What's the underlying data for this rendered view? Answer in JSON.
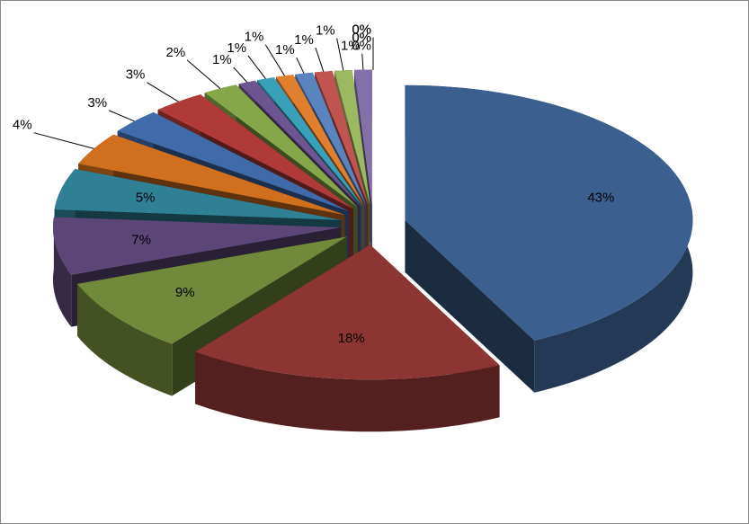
{
  "chart_data": {
    "type": "pie3d",
    "values": [
      43,
      18,
      9,
      7,
      5,
      4,
      3,
      3,
      2,
      1,
      1,
      1,
      1,
      1,
      1,
      1,
      0,
      0,
      0,
      0,
      0
    ],
    "value_labels": [
      "43%",
      "18%",
      "9%",
      "7%",
      "5%",
      "4%",
      "3%",
      "3%",
      "2%",
      "1%",
      "1%",
      "1%",
      "1%",
      "1%",
      "1%",
      "1%",
      "0%",
      "0%",
      "0%",
      "0%",
      "0%"
    ],
    "colors": [
      "#3b5f8f",
      "#8c3533",
      "#71893a",
      "#5b4677",
      "#2f7f95",
      "#d0701e",
      "#3f6bab",
      "#b03a37",
      "#86a64a",
      "#6c5590",
      "#38a0b8",
      "#e07f2e",
      "#5a84c0",
      "#c05450",
      "#9cb860",
      "#8470a8",
      "#55b4cb",
      "#f09a50",
      "#7f9fd0",
      "#d07a78",
      "#b0ca80"
    ]
  }
}
